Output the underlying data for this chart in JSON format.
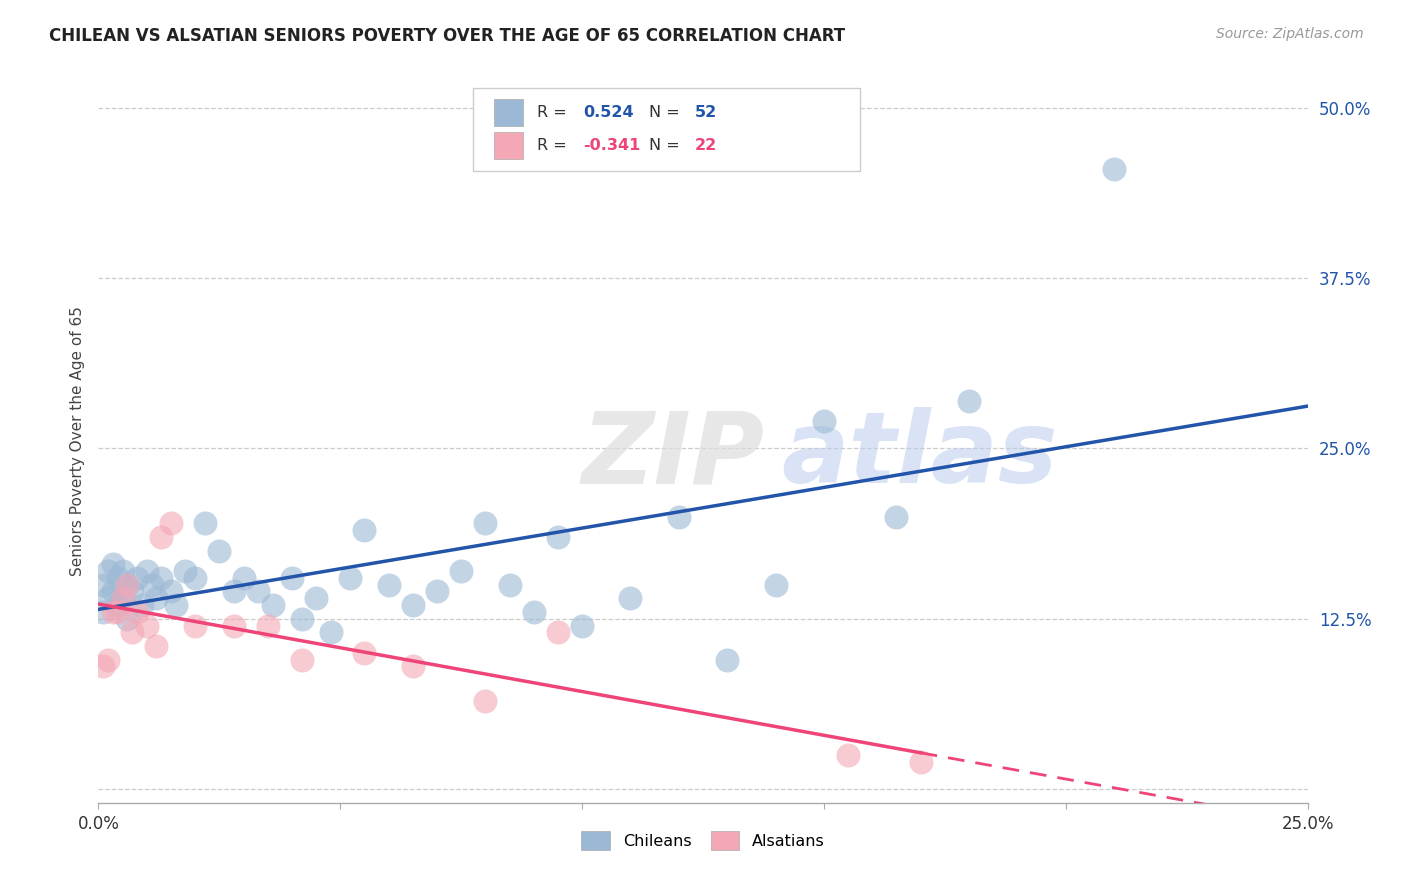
{
  "title": "CHILEAN VS ALSATIAN SENIORS POVERTY OVER THE AGE OF 65 CORRELATION CHART",
  "source": "Source: ZipAtlas.com",
  "ylabel": "Seniors Poverty Over the Age of 65",
  "xlim": [
    0.0,
    0.25
  ],
  "ylim": [
    -0.01,
    0.52
  ],
  "chilean_R": "0.524",
  "chilean_N": "52",
  "alsatian_R": "-0.341",
  "alsatian_N": "22",
  "blue_scatter_color": "#9BB8D4",
  "pink_scatter_color": "#F4A7B5",
  "blue_line_color": "#2255AA",
  "pink_line_color": "#EE4477",
  "chileans_label": "Chileans",
  "alsatians_label": "Alsatians",
  "chileans_x": [
    0.001,
    0.001,
    0.002,
    0.002,
    0.003,
    0.003,
    0.004,
    0.004,
    0.005,
    0.005,
    0.006,
    0.006,
    0.007,
    0.008,
    0.009,
    0.01,
    0.011,
    0.012,
    0.013,
    0.015,
    0.016,
    0.018,
    0.02,
    0.022,
    0.025,
    0.028,
    0.03,
    0.033,
    0.036,
    0.04,
    0.042,
    0.045,
    0.048,
    0.052,
    0.055,
    0.06,
    0.065,
    0.07,
    0.075,
    0.08,
    0.085,
    0.09,
    0.095,
    0.1,
    0.11,
    0.12,
    0.13,
    0.14,
    0.15,
    0.165,
    0.18,
    0.21
  ],
  "chileans_y": [
    0.13,
    0.15,
    0.14,
    0.16,
    0.145,
    0.165,
    0.135,
    0.155,
    0.14,
    0.16,
    0.15,
    0.125,
    0.145,
    0.155,
    0.135,
    0.16,
    0.15,
    0.14,
    0.155,
    0.145,
    0.135,
    0.16,
    0.155,
    0.195,
    0.175,
    0.145,
    0.155,
    0.145,
    0.135,
    0.155,
    0.125,
    0.14,
    0.115,
    0.155,
    0.19,
    0.15,
    0.135,
    0.145,
    0.16,
    0.195,
    0.15,
    0.13,
    0.185,
    0.12,
    0.14,
    0.2,
    0.095,
    0.15,
    0.27,
    0.2,
    0.285,
    0.455
  ],
  "alsatians_x": [
    0.001,
    0.002,
    0.003,
    0.004,
    0.005,
    0.006,
    0.007,
    0.008,
    0.01,
    0.012,
    0.013,
    0.015,
    0.02,
    0.028,
    0.035,
    0.042,
    0.055,
    0.065,
    0.08,
    0.095,
    0.155,
    0.17
  ],
  "alsatians_y": [
    0.09,
    0.095,
    0.13,
    0.13,
    0.14,
    0.15,
    0.115,
    0.13,
    0.12,
    0.105,
    0.185,
    0.195,
    0.12,
    0.12,
    0.12,
    0.095,
    0.1,
    0.09,
    0.065,
    0.115,
    0.025,
    0.02
  ],
  "grid_yticks": [
    0.0,
    0.125,
    0.25,
    0.375,
    0.5
  ],
  "right_yticklabels": [
    "",
    "12.5%",
    "25.0%",
    "37.5%",
    "50.0%"
  ]
}
